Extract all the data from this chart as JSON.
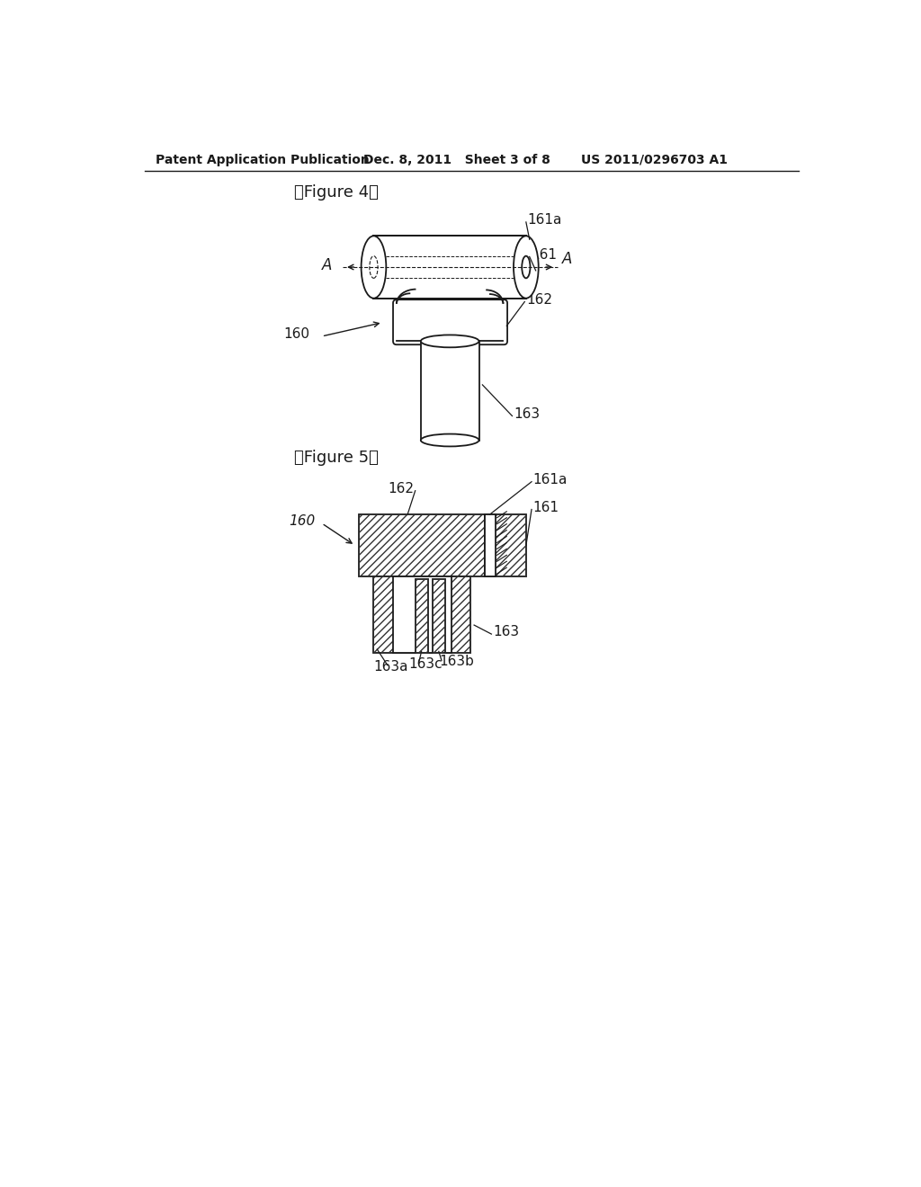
{
  "bg_color": "#ffffff",
  "header_left": "Patent Application Publication",
  "header_mid": "Dec. 8, 2011   Sheet 3 of 8",
  "header_right": "US 2011/0296703 A1",
  "fig4_label": "【Figure 4】",
  "fig5_label": "【Figure 5】",
  "line_color": "#1a1a1a",
  "text_color": "#1a1a1a"
}
